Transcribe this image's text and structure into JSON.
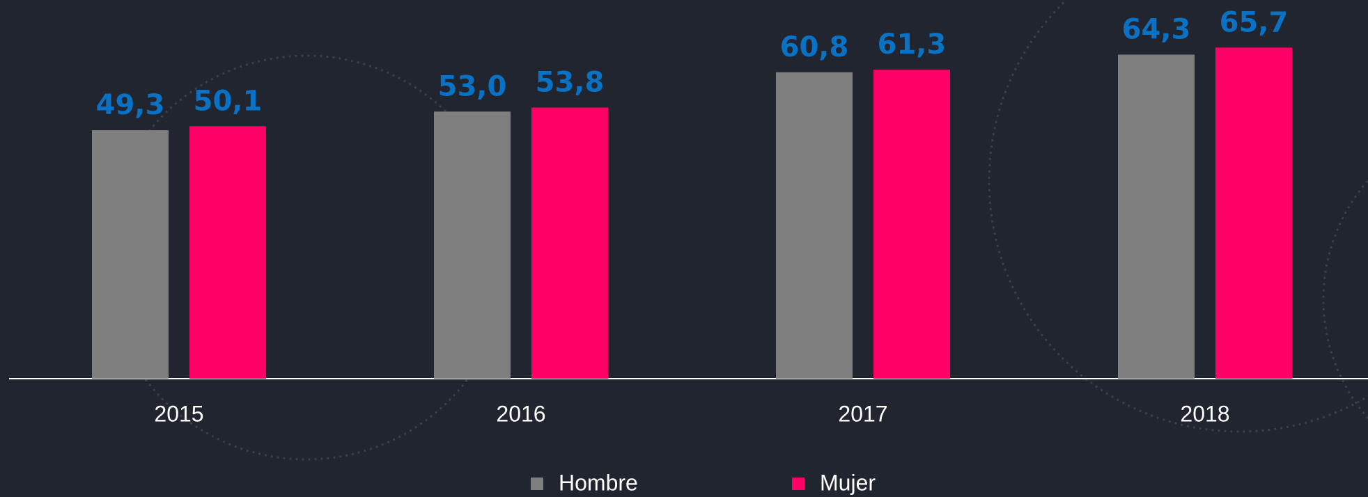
{
  "chart_data": {
    "type": "bar",
    "categories": [
      "2015",
      "2016",
      "2017",
      "2018"
    ],
    "series": [
      {
        "name": "Hombre",
        "color": "#7f7f7f",
        "values": [
          49.3,
          53.0,
          60.8,
          64.3
        ],
        "value_labels": [
          "49,3",
          "53,0",
          "60,8",
          "64,3"
        ]
      },
      {
        "name": "Mujer",
        "color": "#ff0066",
        "values": [
          50.1,
          53.8,
          61.3,
          65.7
        ],
        "value_labels": [
          "50,1",
          "53,8",
          "61,3",
          "65,7"
        ]
      }
    ]
  }
}
